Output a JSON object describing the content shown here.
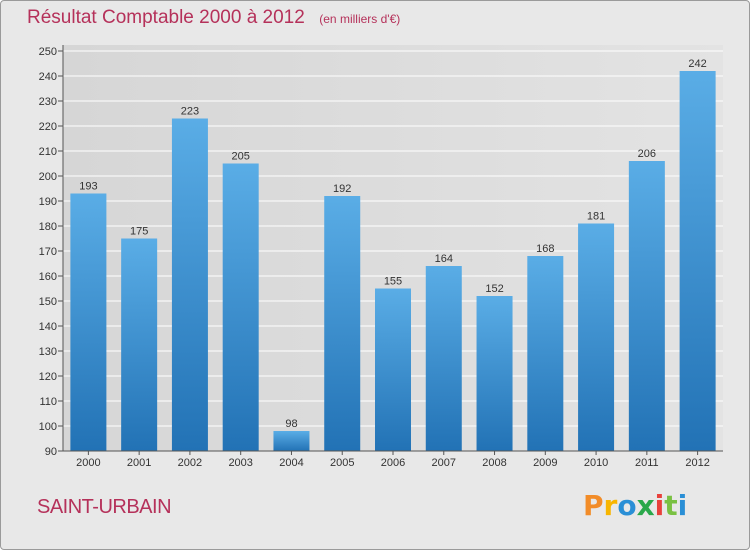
{
  "header": {
    "title": "Résultat Comptable 2000 à 2012",
    "subtitle": "(en milliers d'€)"
  },
  "footer": {
    "commune": "SAINT-URBAIN",
    "brand": [
      "P",
      "r",
      "o",
      "x",
      "i",
      "t",
      "i"
    ]
  },
  "colors": {
    "accent": "#b5315a",
    "bar_light": "#5aade6",
    "bar_dark": "#2272b5",
    "brand": [
      "#f28c28",
      "#f7b500",
      "#2a8fd6",
      "#2aa84a",
      "#e8413c",
      "#7ac143",
      "#2a8fd6"
    ]
  },
  "chart_data": {
    "type": "bar",
    "title": "Résultat Comptable 2000 à 2012",
    "subtitle": "(en milliers d'€)",
    "xlabel": "",
    "ylabel": "",
    "categories": [
      "2000",
      "2001",
      "2002",
      "2003",
      "2004",
      "2005",
      "2006",
      "2007",
      "2008",
      "2009",
      "2010",
      "2011",
      "2012"
    ],
    "values": [
      193,
      175,
      223,
      205,
      98,
      192,
      155,
      164,
      152,
      168,
      181,
      206,
      242
    ],
    "ylim": [
      90,
      250
    ],
    "ytick_step": 10,
    "grid": true
  }
}
